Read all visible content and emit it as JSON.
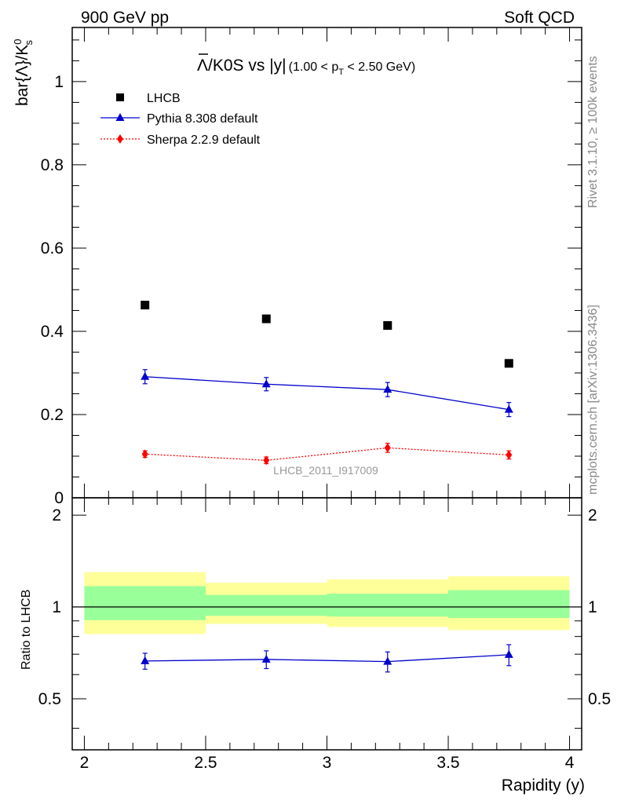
{
  "header": {
    "left": "900 GeV pp",
    "right": "Soft QCD"
  },
  "side_labels": {
    "top": "Rivet 3.1.10, ≥ 100k events",
    "bottom": "mcplots.cern.ch [arXiv:1306.3436]"
  },
  "chart_data": {
    "type": "scatter",
    "title": {
      "main": "Λ/K0S vs |y|",
      "sub_a": "(1.00 < p",
      "sub_sub": "T",
      "sub_b": " < 2.50 GeV)"
    },
    "ylabel": {
      "main": "bar{Λ}/K",
      "sup": "0",
      "sub": "s"
    },
    "xlabel": "Rapidity (y)",
    "ratio_ylabel": "Ratio to LHCB",
    "watermark": "LHCB_2011_I917009",
    "xlim": [
      1.95,
      4.05
    ],
    "ylim": [
      0,
      1.13
    ],
    "ratio_ylim": [
      0.34,
      2.28
    ],
    "x_ticks": [
      "2",
      "2.5",
      "3",
      "3.5",
      "4"
    ],
    "y_ticks": [
      "0",
      "0.2",
      "0.4",
      "0.6",
      "0.8",
      "1"
    ],
    "ratio_ticks": [
      "0.5",
      "1",
      "2"
    ],
    "legend_position": "top-left",
    "bin_edges": [
      [
        2.0,
        2.5
      ],
      [
        2.5,
        3.0
      ],
      [
        3.0,
        3.5
      ],
      [
        3.5,
        4.0
      ]
    ],
    "x": [
      2.25,
      2.75,
      3.25,
      3.75
    ],
    "series": [
      {
        "name": "LHCB",
        "values": [
          0.463,
          0.43,
          0.414,
          0.323
        ],
        "color": "#000000",
        "marker": "square"
      },
      {
        "name": "Pythia 8.308 default",
        "values": [
          0.291,
          0.273,
          0.26,
          0.212
        ],
        "errors": [
          0.017,
          0.016,
          0.017,
          0.017
        ],
        "color": "#0000cc",
        "marker": "triangle"
      },
      {
        "name": "Sherpa 2.2.9 default",
        "values": [
          0.105,
          0.09,
          0.12,
          0.103
        ],
        "errors": [
          0.008,
          0.008,
          0.011,
          0.01
        ],
        "color": "#ff0000",
        "marker": "diamond"
      }
    ],
    "ratio": {
      "values": [
        0.665,
        0.673,
        0.662,
        0.697
      ],
      "errors": [
        0.04,
        0.045,
        0.05,
        0.055
      ],
      "stat_band": [
        [
          0.905,
          1.17
        ],
        [
          0.935,
          1.095
        ],
        [
          0.93,
          1.105
        ],
        [
          0.92,
          1.135
        ]
      ],
      "total_band": [
        [
          0.815,
          1.3
        ],
        [
          0.88,
          1.2
        ],
        [
          0.86,
          1.23
        ],
        [
          0.84,
          1.26
        ]
      ]
    }
  }
}
